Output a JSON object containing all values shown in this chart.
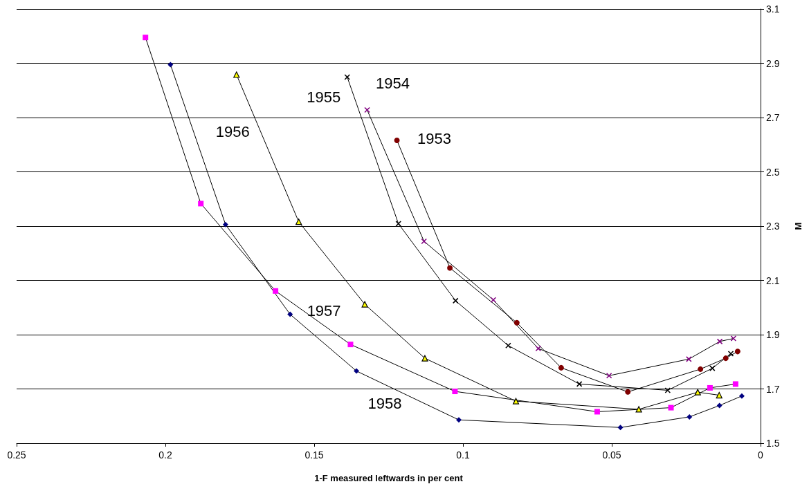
{
  "chart_data": {
    "type": "line",
    "xlabel": "1-F measured leftwards in per cent",
    "ylabel": "M",
    "xlim": [
      0.25,
      0
    ],
    "xticks": [
      0.25,
      0.2,
      0.15,
      0.1,
      0.05,
      0
    ],
    "ylim": [
      1.5,
      3.1
    ],
    "yticks": [
      1.5,
      1.7,
      1.9,
      2.1,
      2.3,
      2.5,
      2.7,
      2.9,
      3.1
    ],
    "grid": "y",
    "legend": false,
    "line_style": "solid",
    "series": [
      {
        "name": "1953",
        "color": "#800000",
        "marker": "circle",
        "x": [
          0.1222,
          0.1044,
          0.0819,
          0.067,
          0.0446,
          0.0202,
          0.0117,
          0.0077
        ],
        "values": [
          2.616,
          2.146,
          1.944,
          1.778,
          1.689,
          1.773,
          1.813,
          1.838
        ]
      },
      {
        "name": "1954",
        "color": "#800080",
        "marker": "cross",
        "x": [
          0.1322,
          0.1131,
          0.0898,
          0.0747,
          0.0509,
          0.0241,
          0.0137,
          0.0091
        ],
        "values": [
          2.728,
          2.244,
          2.028,
          1.849,
          1.749,
          1.81,
          1.875,
          1.886
        ]
      },
      {
        "name": "1955",
        "color": "#000000",
        "marker": "cross",
        "x": [
          0.1389,
          0.1217,
          0.1025,
          0.0848,
          0.0609,
          0.0312,
          0.0162,
          0.01
        ],
        "values": [
          2.849,
          2.309,
          2.025,
          1.86,
          1.718,
          1.695,
          1.776,
          1.83
        ]
      },
      {
        "name": "1956",
        "color": "#ffff00",
        "marker": "triangle",
        "x": [
          0.1761,
          0.1552,
          0.133,
          0.1128,
          0.0822,
          0.0409,
          0.0211,
          0.0139
        ],
        "values": [
          2.858,
          2.316,
          2.012,
          1.813,
          1.655,
          1.625,
          1.688,
          1.677
        ]
      },
      {
        "name": "1957",
        "color": "#ff00ff",
        "marker": "square",
        "x": [
          0.2067,
          0.1881,
          0.163,
          0.1378,
          0.1027,
          0.0549,
          0.0301,
          0.017,
          0.0084
        ],
        "values": [
          2.995,
          2.383,
          2.061,
          1.864,
          1.691,
          1.616,
          1.631,
          1.704,
          1.718
        ]
      },
      {
        "name": "1958",
        "color": "#000080",
        "marker": "diamond",
        "x": [
          0.1983,
          0.1798,
          0.1581,
          0.1358,
          0.1014,
          0.0471,
          0.0239,
          0.0138,
          0.0063
        ],
        "values": [
          2.895,
          2.306,
          1.975,
          1.766,
          1.586,
          1.558,
          1.597,
          1.639,
          1.674
        ]
      }
    ]
  }
}
